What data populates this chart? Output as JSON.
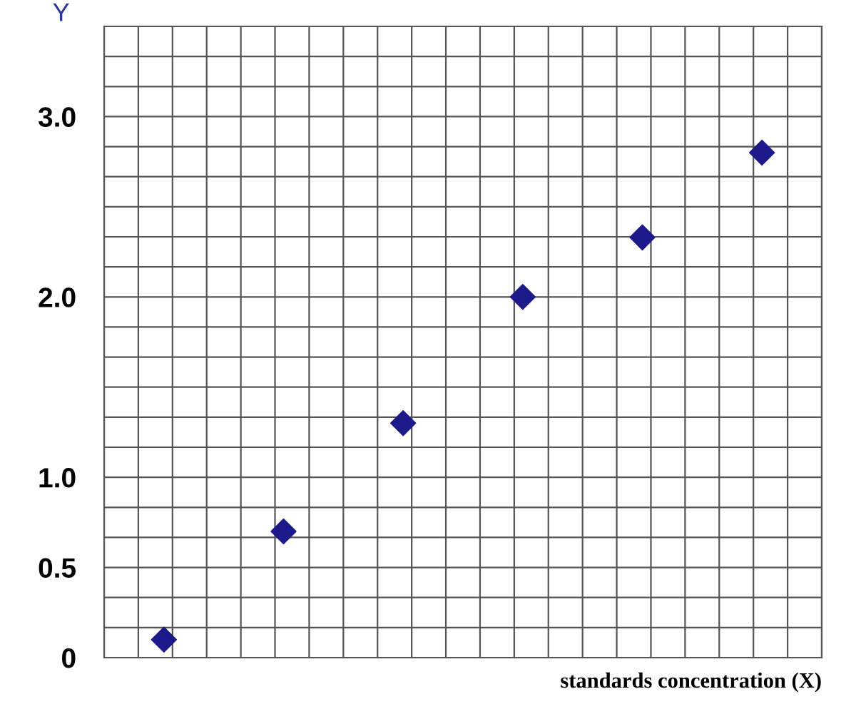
{
  "chart_data": {
    "type": "scatter",
    "ylabel": "Y",
    "xlabel": "standards concentration (X)",
    "categories": [
      null,
      null,
      null,
      null,
      null,
      null
    ],
    "series": [
      {
        "color": "#1c1a8a",
        "values": [
          0.1,
          0.7,
          1.3,
          2.0,
          2.33,
          2.8
        ]
      }
    ],
    "ylim": [
      0,
      3.5
    ],
    "yticks": [
      0,
      0.5,
      {
        "value": 1,
        "label": "1.0"
      },
      {
        "value": 2,
        "label": "2.0"
      },
      {
        "value": 3,
        "label": "3.0"
      }
    ],
    "tick_labels": "y",
    "grid": true,
    "marker": "diamond"
  }
}
